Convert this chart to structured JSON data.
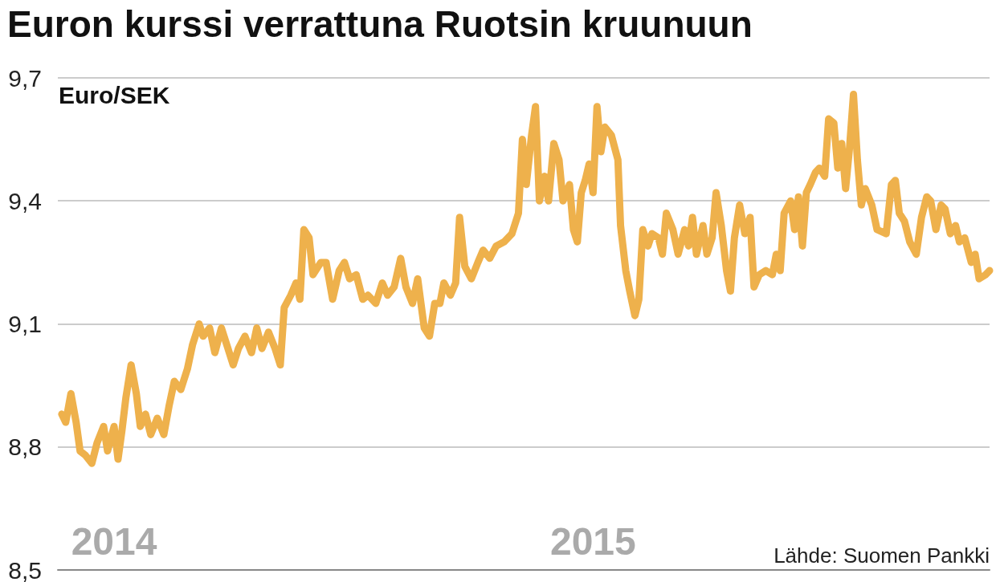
{
  "chart_data": {
    "type": "line",
    "title": "Euron kurssi verrattuna Ruotsin kruunuun",
    "ylabel": "Euro/SEK",
    "annotations": [
      "Lähde: Suomen Pankki"
    ],
    "xlim": [
      "2013-12-29",
      "2015-12-11"
    ],
    "xticks": [
      {
        "value": "2014-02-10",
        "label": "2014"
      },
      {
        "value": "2015-02-11",
        "label": "2015"
      }
    ],
    "ylim": [
      8.5,
      9.7
    ],
    "yticks": [
      {
        "value": 8.5,
        "label": "8,5"
      },
      {
        "value": 8.8,
        "label": "8,8"
      },
      {
        "value": 9.1,
        "label": "9,1"
      },
      {
        "value": 9.4,
        "label": "9,4"
      },
      {
        "value": 9.7,
        "label": "9,7"
      }
    ],
    "grid": "y",
    "line_style": "solid",
    "x": [
      "2014-01-01",
      "2014-01-04",
      "2014-01-08",
      "2014-01-12",
      "2014-01-15",
      "2014-01-19",
      "2014-01-24",
      "2014-01-28",
      "2014-02-02",
      "2014-02-05",
      "2014-02-10",
      "2014-02-13",
      "2014-02-16",
      "2014-02-19",
      "2014-02-23",
      "2014-02-27",
      "2014-03-02",
      "2014-03-06",
      "2014-03-10",
      "2014-03-15",
      "2014-03-20",
      "2014-03-24",
      "2014-03-28",
      "2014-04-02",
      "2014-04-07",
      "2014-04-11",
      "2014-04-16",
      "2014-04-19",
      "2014-04-24",
      "2014-04-28",
      "2014-05-03",
      "2014-05-08",
      "2014-05-12",
      "2014-05-16",
      "2014-05-21",
      "2014-05-26",
      "2014-05-30",
      "2014-06-03",
      "2014-06-08",
      "2014-06-13",
      "2014-06-17",
      "2014-06-20",
      "2014-06-25",
      "2014-06-29",
      "2014-07-02",
      "2014-07-05",
      "2014-07-09",
      "2014-07-12",
      "2014-07-18",
      "2014-07-22",
      "2014-07-27",
      "2014-08-01",
      "2014-08-05",
      "2014-08-09",
      "2014-08-14",
      "2014-08-19",
      "2014-08-23",
      "2014-08-29",
      "2014-09-03",
      "2014-09-07",
      "2014-09-12",
      "2014-09-17",
      "2014-09-21",
      "2014-09-26",
      "2014-09-30",
      "2014-10-05",
      "2014-10-09",
      "2014-10-13",
      "2014-10-17",
      "2014-10-20",
      "2014-10-25",
      "2014-10-29",
      "2014-11-01",
      "2014-11-05",
      "2014-11-10",
      "2014-11-15",
      "2014-11-19",
      "2014-11-24",
      "2014-11-29",
      "2014-12-05",
      "2014-12-11",
      "2014-12-16",
      "2014-12-19",
      "2014-12-22",
      "2014-12-26",
      "2014-12-29",
      "2015-01-01",
      "2015-01-05",
      "2015-01-08",
      "2015-01-12",
      "2015-01-16",
      "2015-01-19",
      "2015-01-24",
      "2015-01-27",
      "2015-01-30",
      "2015-02-02",
      "2015-02-05",
      "2015-02-08",
      "2015-02-11",
      "2015-02-14",
      "2015-02-17",
      "2015-02-20",
      "2015-02-25",
      "2015-03-02",
      "2015-03-04",
      "2015-03-08",
      "2015-03-11",
      "2015-03-15",
      "2015-03-18",
      "2015-03-21",
      "2015-03-25",
      "2015-03-28",
      "2015-04-02",
      "2015-04-05",
      "2015-04-08",
      "2015-04-13",
      "2015-04-17",
      "2015-04-22",
      "2015-04-25",
      "2015-04-28",
      "2015-05-01",
      "2015-05-06",
      "2015-05-09",
      "2015-05-13",
      "2015-05-16",
      "2015-05-20",
      "2015-05-24",
      "2015-05-27",
      "2015-05-30",
      "2015-06-03",
      "2015-06-07",
      "2015-06-11",
      "2015-06-14",
      "2015-06-18",
      "2015-06-23",
      "2015-06-28",
      "2015-07-01",
      "2015-07-04",
      "2015-07-07",
      "2015-07-12",
      "2015-07-15",
      "2015-07-18",
      "2015-07-21",
      "2015-07-24",
      "2015-07-27",
      "2015-07-31",
      "2015-08-03",
      "2015-08-07",
      "2015-08-10",
      "2015-08-14",
      "2015-08-17",
      "2015-08-20",
      "2015-08-23",
      "2015-08-26",
      "2015-08-29",
      "2015-09-01",
      "2015-09-04",
      "2015-09-07",
      "2015-09-12",
      "2015-09-16",
      "2015-09-23",
      "2015-09-27",
      "2015-09-30",
      "2015-10-03",
      "2015-10-07",
      "2015-10-11",
      "2015-10-16",
      "2015-10-20",
      "2015-10-24",
      "2015-10-27",
      "2015-10-31",
      "2015-11-04",
      "2015-11-07",
      "2015-11-11",
      "2015-11-15",
      "2015-11-18",
      "2015-11-22",
      "2015-11-27",
      "2015-11-30",
      "2015-12-03",
      "2015-12-08",
      "2015-12-11"
    ],
    "series": [
      {
        "color": "#eeb14c",
        "values": [
          8.88,
          8.86,
          8.93,
          8.86,
          8.79,
          8.78,
          8.76,
          8.81,
          8.85,
          8.79,
          8.85,
          8.77,
          8.84,
          8.92,
          9.0,
          8.93,
          8.85,
          8.88,
          8.83,
          8.87,
          8.83,
          8.9,
          8.96,
          8.94,
          8.99,
          9.05,
          9.1,
          9.07,
          9.09,
          9.03,
          9.09,
          9.04,
          9.0,
          9.04,
          9.07,
          9.03,
          9.09,
          9.04,
          9.08,
          9.04,
          9.0,
          9.14,
          9.17,
          9.2,
          9.16,
          9.33,
          9.31,
          9.22,
          9.25,
          9.25,
          9.16,
          9.23,
          9.25,
          9.21,
          9.22,
          9.16,
          9.17,
          9.15,
          9.2,
          9.17,
          9.19,
          9.26,
          9.19,
          9.15,
          9.21,
          9.09,
          9.07,
          9.15,
          9.15,
          9.2,
          9.17,
          9.2,
          9.36,
          9.24,
          9.21,
          9.25,
          9.28,
          9.26,
          9.29,
          9.3,
          9.32,
          9.37,
          9.55,
          9.44,
          9.56,
          9.63,
          9.4,
          9.46,
          9.4,
          9.54,
          9.5,
          9.4,
          9.44,
          9.33,
          9.3,
          9.42,
          9.45,
          9.49,
          9.42,
          9.63,
          9.52,
          9.58,
          9.56,
          9.5,
          9.34,
          9.23,
          9.18,
          9.12,
          9.16,
          9.33,
          9.29,
          9.32,
          9.31,
          9.27,
          9.37,
          9.33,
          9.27,
          9.33,
          9.29,
          9.36,
          9.27,
          9.34,
          9.27,
          9.31,
          9.42,
          9.34,
          9.23,
          9.18,
          9.31,
          9.39,
          9.32,
          9.36,
          9.19,
          9.22,
          9.23,
          9.22,
          9.27,
          9.23,
          9.37,
          9.4,
          9.33,
          9.41,
          9.29,
          9.42,
          9.44,
          9.47,
          9.48,
          9.46,
          9.6,
          9.59,
          9.48,
          9.54,
          9.43,
          9.53,
          9.66,
          9.5,
          9.39,
          9.43,
          9.39,
          9.33,
          9.32,
          9.44,
          9.45,
          9.37,
          9.35,
          9.3,
          9.27,
          9.36,
          9.41,
          9.4,
          9.33,
          9.39,
          9.38,
          9.32,
          9.34,
          9.3,
          9.31,
          9.25,
          9.27,
          9.21,
          9.22,
          9.23
        ]
      }
    ]
  }
}
